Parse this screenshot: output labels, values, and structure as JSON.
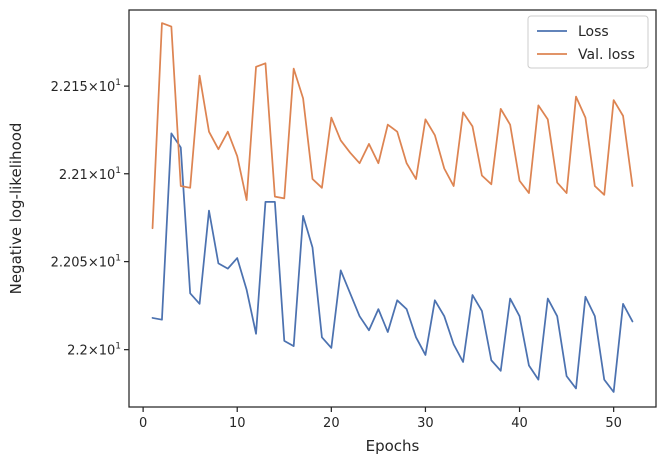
{
  "chart_data": {
    "type": "line",
    "xlabel": "Epochs",
    "ylabel": "Negative log-likelihood",
    "xlim": [
      -1.5,
      54.5
    ],
    "ylim": [
      21.9675,
      22.1935
    ],
    "y_scale": "log",
    "grid": false,
    "legend_position": "top-right",
    "x_ticks": [
      {
        "value": 0,
        "label": "0"
      },
      {
        "value": 10,
        "label": "10"
      },
      {
        "value": 20,
        "label": "20"
      },
      {
        "value": 30,
        "label": "30"
      },
      {
        "value": 40,
        "label": "40"
      },
      {
        "value": 50,
        "label": "50"
      }
    ],
    "y_ticks": [
      {
        "value": 22.0,
        "base": "2.2",
        "exp": "1"
      },
      {
        "value": 22.05,
        "base": "2.205",
        "exp": "1"
      },
      {
        "value": 22.1,
        "base": "2.21",
        "exp": "1"
      },
      {
        "value": 22.15,
        "base": "2.215",
        "exp": "1"
      }
    ],
    "x": [
      1,
      2,
      3,
      4,
      5,
      6,
      7,
      8,
      9,
      10,
      11,
      12,
      13,
      14,
      15,
      16,
      17,
      18,
      19,
      20,
      21,
      22,
      23,
      24,
      25,
      26,
      27,
      28,
      29,
      30,
      31,
      32,
      33,
      34,
      35,
      36,
      37,
      38,
      39,
      40,
      41,
      42,
      43,
      44,
      45,
      46,
      47,
      48,
      49,
      50,
      51,
      52
    ],
    "series": [
      {
        "name": "Loss",
        "color": "#4c72b0",
        "values": [
          22.018,
          22.017,
          22.123,
          22.115,
          22.032,
          22.026,
          22.079,
          22.049,
          22.046,
          22.052,
          22.034,
          22.009,
          22.084,
          22.084,
          22.005,
          22.002,
          22.076,
          22.058,
          22.007,
          22.001,
          22.045,
          22.032,
          22.019,
          22.011,
          22.023,
          22.01,
          22.028,
          22.023,
          22.007,
          21.997,
          22.028,
          22.019,
          22.003,
          21.993,
          22.031,
          22.022,
          21.994,
          21.988,
          22.029,
          22.019,
          21.991,
          21.983,
          22.029,
          22.019,
          21.985,
          21.978,
          22.03,
          22.019,
          21.983,
          21.976,
          22.026,
          22.016
        ]
      },
      {
        "name": "Val. loss",
        "color": "#dd8452",
        "values": [
          22.069,
          22.186,
          22.184,
          22.093,
          22.092,
          22.156,
          22.124,
          22.114,
          22.124,
          22.11,
          22.085,
          22.161,
          22.163,
          22.087,
          22.086,
          22.16,
          22.143,
          22.097,
          22.092,
          22.132,
          22.119,
          22.112,
          22.106,
          22.117,
          22.106,
          22.128,
          22.124,
          22.106,
          22.097,
          22.131,
          22.122,
          22.103,
          22.093,
          22.135,
          22.127,
          22.099,
          22.094,
          22.137,
          22.128,
          22.096,
          22.089,
          22.139,
          22.131,
          22.095,
          22.089,
          22.144,
          22.132,
          22.093,
          22.088,
          22.142,
          22.133,
          22.093
        ]
      }
    ]
  }
}
